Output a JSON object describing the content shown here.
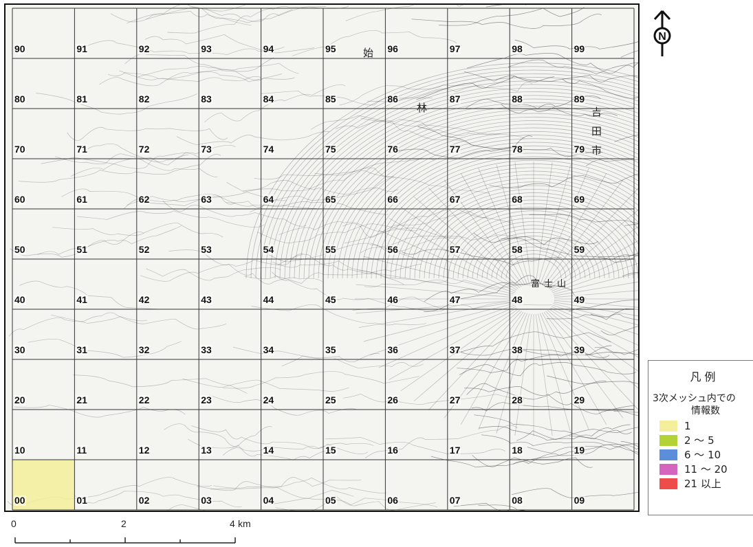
{
  "map": {
    "grid_rows": [
      [
        "90",
        "91",
        "92",
        "93",
        "94",
        "95",
        "96",
        "97",
        "98",
        "99"
      ],
      [
        "80",
        "81",
        "82",
        "83",
        "84",
        "85",
        "86",
        "87",
        "88",
        "89"
      ],
      [
        "70",
        "71",
        "72",
        "73",
        "74",
        "75",
        "76",
        "77",
        "78",
        "79"
      ],
      [
        "60",
        "61",
        "62",
        "63",
        "64",
        "65",
        "66",
        "67",
        "68",
        "69"
      ],
      [
        "50",
        "51",
        "52",
        "53",
        "54",
        "55",
        "56",
        "57",
        "58",
        "59"
      ],
      [
        "40",
        "41",
        "42",
        "43",
        "44",
        "45",
        "46",
        "47",
        "48",
        "49"
      ],
      [
        "30",
        "31",
        "32",
        "33",
        "34",
        "35",
        "36",
        "37",
        "38",
        "39"
      ],
      [
        "20",
        "21",
        "22",
        "23",
        "24",
        "25",
        "26",
        "27",
        "28",
        "29"
      ],
      [
        "10",
        "11",
        "12",
        "13",
        "14",
        "15",
        "16",
        "17",
        "18",
        "19"
      ],
      [
        "00",
        "01",
        "02",
        "03",
        "04",
        "05",
        "06",
        "07",
        "08",
        "09"
      ]
    ],
    "highlighted_cells": [
      {
        "cell": "00",
        "count_class": "1"
      }
    ],
    "place_labels": {
      "fuji": "富士山",
      "bayashi": "林",
      "shi": "始",
      "fujiyoshida_a": "吉",
      "fujiyoshida_b": "田",
      "fujiyoshida_c": "市"
    }
  },
  "north_arrow": {
    "letter": "N"
  },
  "legend": {
    "title": "凡 例",
    "caption_line1": "3次メッシュ内での",
    "caption_line2": "情報数",
    "items": [
      {
        "label": "1",
        "color": "#f5ee9a"
      },
      {
        "label": "2 ～ 5",
        "color": "#b3d235"
      },
      {
        "label": "6 ～ 10",
        "color": "#5b8fd9"
      },
      {
        "label": "11 ～ 20",
        "color": "#d466c0"
      },
      {
        "label": "21 以上",
        "color": "#ee4b4b"
      }
    ]
  },
  "scale": {
    "ticks": [
      "0",
      "2",
      "4"
    ],
    "unit": "km"
  }
}
